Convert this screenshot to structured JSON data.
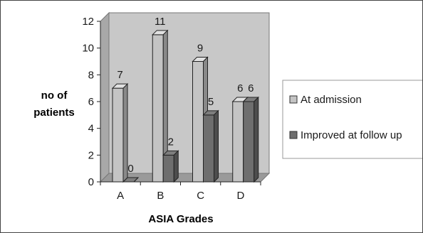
{
  "chart_data": {
    "type": "bar",
    "categories": [
      "A",
      "B",
      "C",
      "D"
    ],
    "series": [
      {
        "name": "At admission",
        "values": [
          7,
          11,
          9,
          6
        ],
        "color": "#c4c4c4"
      },
      {
        "name": "Improved at follow up",
        "values": [
          0,
          2,
          5,
          6
        ],
        "color": "#6e6e6e"
      }
    ],
    "ylim": [
      0,
      12
    ],
    "yticks": [
      0,
      2,
      4,
      6,
      8,
      10,
      12
    ],
    "xlabel": "ASIA Grades",
    "ylabel_line1": "no of",
    "ylabel_line2": "patients",
    "grid": false,
    "legend_position": "right",
    "plot_background": "#c8c8c8"
  }
}
